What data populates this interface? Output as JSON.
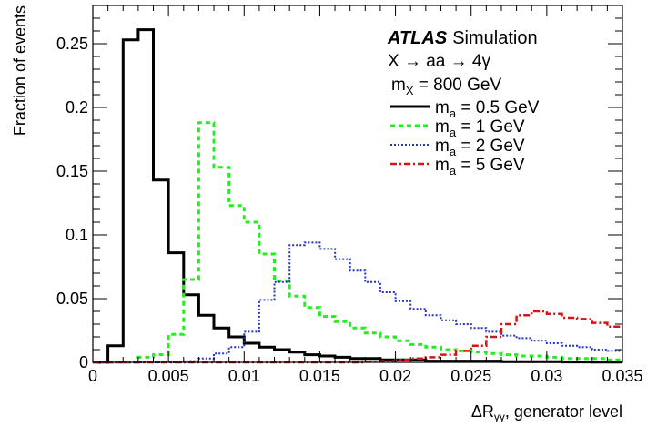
{
  "chart_data": {
    "type": "line",
    "xlabel": "ΔR",
    "xlabel_sub": "γγ",
    "xlabel_suffix": ", generator level",
    "ylabel": "Fraction of events",
    "xlim": [
      0,
      0.035
    ],
    "ylim": [
      0,
      0.28
    ],
    "x_ticks": [
      0,
      0.005,
      0.01,
      0.015,
      0.02,
      0.025,
      0.03,
      0.035
    ],
    "x_tick_labels": [
      "0",
      "0.005",
      "0.01",
      "0.015",
      "0.02",
      "0.025",
      "0.03",
      "0.035"
    ],
    "y_ticks": [
      0,
      0.05,
      0.1,
      0.15,
      0.2,
      0.25
    ],
    "y_tick_labels": [
      "0",
      "0.05",
      "0.1",
      "0.15",
      "0.2",
      "0.25"
    ],
    "grid": false,
    "legend_position": "top-right",
    "annotation": {
      "experiment": "ATLAS",
      "label": "Simulation",
      "process": "X → aa → 4γ",
      "mass_prefix": "m",
      "mass_sub": "X",
      "mass_value": " = 800 GeV"
    },
    "bin_edges": [
      0,
      0.001,
      0.002,
      0.003,
      0.004,
      0.005,
      0.006,
      0.007,
      0.008,
      0.009,
      0.01,
      0.011,
      0.012,
      0.013,
      0.014,
      0.015,
      0.016,
      0.017,
      0.018,
      0.019,
      0.02,
      0.021,
      0.022,
      0.023,
      0.024,
      0.025,
      0.026,
      0.027,
      0.028,
      0.029,
      0.03,
      0.031,
      0.032,
      0.033,
      0.034,
      0.035
    ],
    "series": [
      {
        "name_prefix": "m",
        "name_sub": "a",
        "name_suffix": " = 0.5 GeV",
        "color": "#000000",
        "dash": "",
        "width": 3,
        "values": [
          0.0,
          0.013,
          0.253,
          0.261,
          0.143,
          0.086,
          0.053,
          0.037,
          0.027,
          0.02,
          0.015,
          0.012,
          0.01,
          0.008,
          0.006,
          0.005,
          0.004,
          0.003,
          0.003,
          0.002,
          0.002,
          0.002,
          0.001,
          0.001,
          0.001,
          0.001,
          0.001,
          0.0005,
          0.0005,
          0.0005,
          0.0005,
          0.0003,
          0.0003,
          0.0002,
          0.0002
        ]
      },
      {
        "name_prefix": "m",
        "name_sub": "a",
        "name_suffix": " = 1 GeV",
        "color": "#22ee22",
        "dash": "5,4",
        "width": 3,
        "values": [
          0.0,
          0.0,
          0.0,
          0.004,
          0.006,
          0.022,
          0.065,
          0.188,
          0.153,
          0.123,
          0.11,
          0.085,
          0.064,
          0.052,
          0.043,
          0.036,
          0.032,
          0.027,
          0.023,
          0.02,
          0.017,
          0.014,
          0.012,
          0.01,
          0.009,
          0.008,
          0.007,
          0.006,
          0.005,
          0.005,
          0.004,
          0.003,
          0.003,
          0.003,
          0.002
        ]
      },
      {
        "name_prefix": "m",
        "name_sub": "a",
        "name_suffix": " = 2 GeV",
        "color": "#2233cc",
        "dash": "2,2",
        "width": 2,
        "values": [
          0.0,
          0.0,
          0.0,
          0.0,
          0.0,
          0.0,
          0.001,
          0.003,
          0.007,
          0.012,
          0.024,
          0.049,
          0.063,
          0.092,
          0.094,
          0.089,
          0.081,
          0.072,
          0.063,
          0.055,
          0.048,
          0.042,
          0.037,
          0.033,
          0.03,
          0.027,
          0.024,
          0.021,
          0.019,
          0.017,
          0.015,
          0.013,
          0.012,
          0.01,
          0.009
        ]
      },
      {
        "name_prefix": "m",
        "name_sub": "a",
        "name_suffix": " = 5 GeV",
        "color": "#dd1111",
        "dash": "7,3,2,3",
        "width": 2.5,
        "values": [
          0.0,
          0.0,
          0.0,
          0.0,
          0.0,
          0.0,
          0.0,
          0.0,
          0.0,
          0.0,
          0.0,
          0.0,
          0.0,
          0.0,
          0.0,
          0.0,
          0.0,
          0.0,
          0.0005,
          0.001,
          0.002,
          0.003,
          0.004,
          0.006,
          0.009,
          0.013,
          0.02,
          0.03,
          0.037,
          0.04,
          0.038,
          0.035,
          0.034,
          0.031,
          0.028
        ]
      }
    ]
  }
}
